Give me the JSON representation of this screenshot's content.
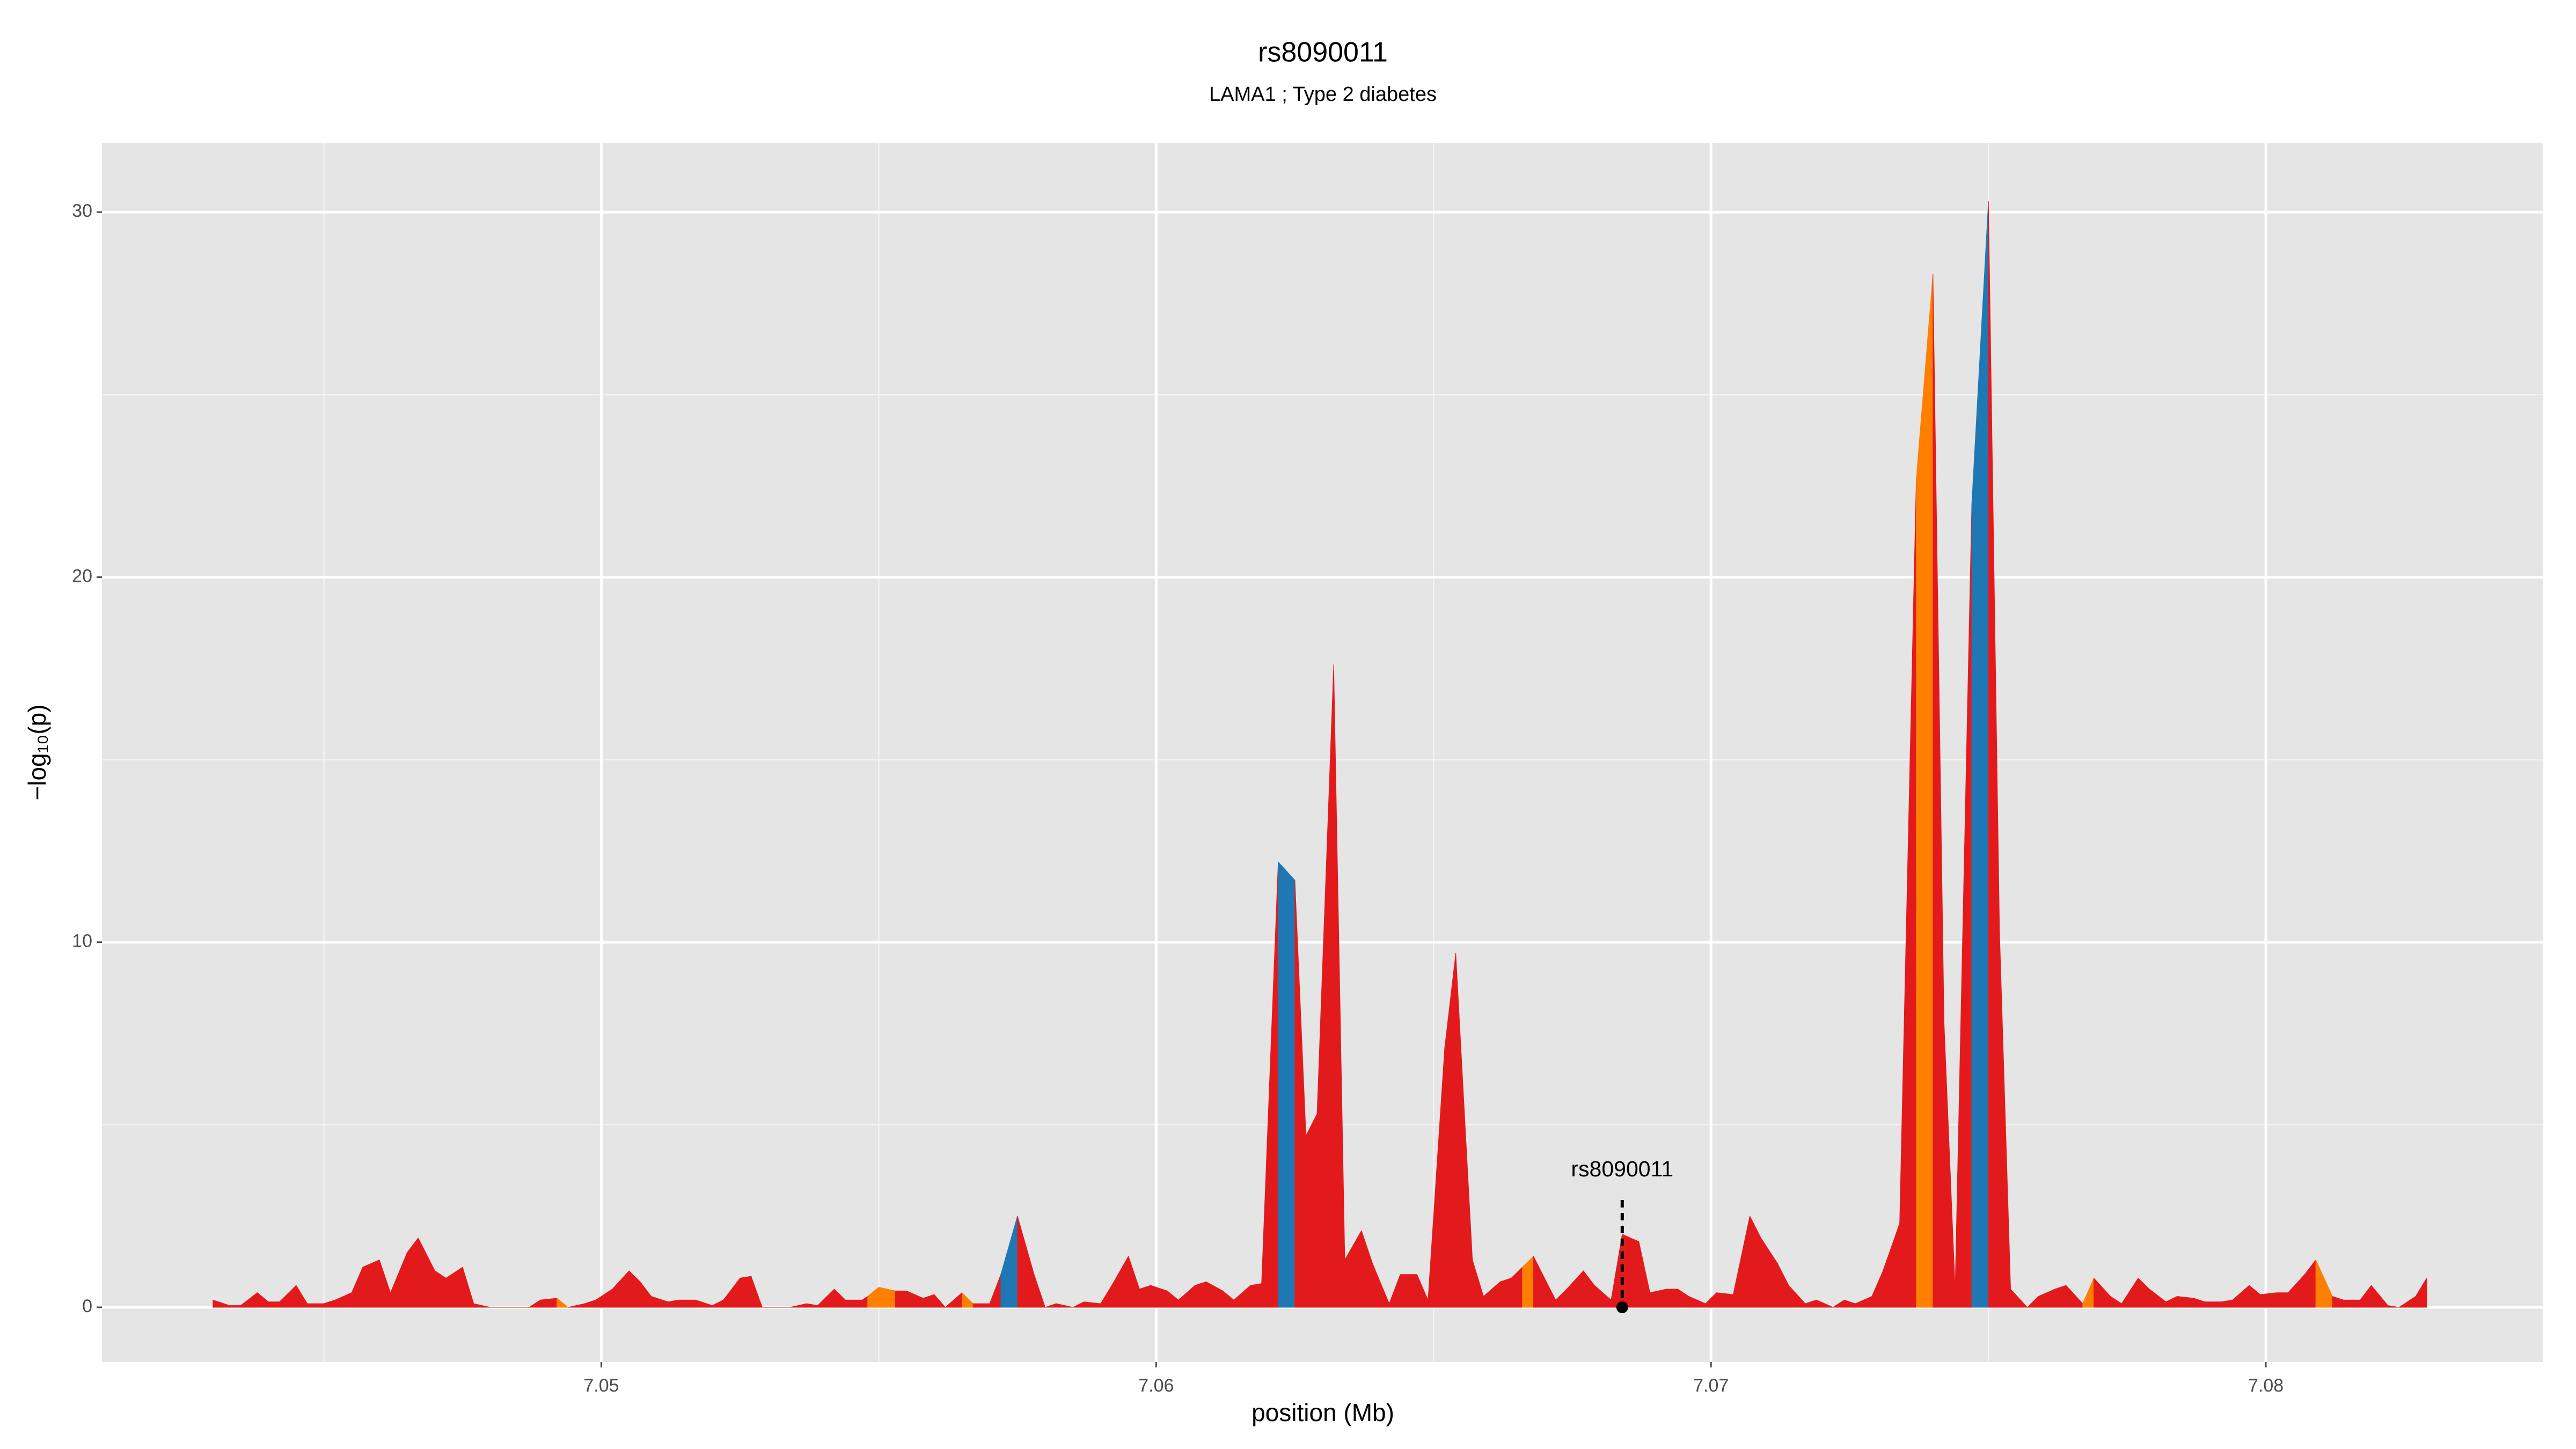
{
  "chart_data": {
    "type": "area",
    "title": "rs8090011",
    "subtitle": "LAMA1 ; Type 2 diabetes",
    "xlabel": "position (Mb)",
    "ylabel": "−log₁₀(p)",
    "xlim": [
      7.041,
      7.085
    ],
    "ylim": [
      -1.5,
      31.9
    ],
    "xticks": [
      7.05,
      7.06,
      7.07,
      7.08
    ],
    "yticks": [
      0,
      10,
      20,
      30
    ],
    "x_minor_ticks": [
      7.045,
      7.055,
      7.065,
      7.075
    ],
    "y_minor_ticks": [
      5,
      15,
      25
    ],
    "grid": true,
    "panel_color": "#e5e5e5",
    "x": [
      7.043,
      7.0433,
      7.0435,
      7.0438,
      7.044,
      7.0442,
      7.0445,
      7.0447,
      7.045,
      7.0452,
      7.0455,
      7.0457,
      7.046,
      7.0462,
      7.0465,
      7.0467,
      7.047,
      7.0472,
      7.0475,
      7.0477,
      7.048,
      7.0482,
      7.0485,
      7.0487,
      7.0489,
      7.0492,
      7.0494,
      7.0497,
      7.0499,
      7.0502,
      7.0505,
      7.0507,
      7.0509,
      7.0512,
      7.0514,
      7.0517,
      7.052,
      7.0522,
      7.0525,
      7.0527,
      7.0529,
      7.0532,
      7.0534,
      7.0537,
      7.0539,
      7.0542,
      7.0544,
      7.0547,
      7.0548,
      7.055,
      7.0553,
      7.0555,
      7.0558,
      7.056,
      7.0562,
      7.0565,
      7.0567,
      7.057,
      7.0572,
      7.0575,
      7.0578,
      7.058,
      7.0582,
      7.0585,
      7.0587,
      7.059,
      7.0592,
      7.0595,
      7.0597,
      7.0599,
      7.0602,
      7.0604,
      7.0607,
      7.0609,
      7.0612,
      7.0614,
      7.0617,
      7.0619,
      7.0622,
      7.0625,
      7.0627,
      7.0629,
      7.0632,
      7.0634,
      7.0637,
      7.0639,
      7.0642,
      7.0644,
      7.0647,
      7.0649,
      7.0652,
      7.0654,
      7.0657,
      7.0659,
      7.0662,
      7.0664,
      7.0666,
      7.0668,
      7.0669,
      7.0672,
      7.0674,
      7.0677,
      7.0679,
      7.0682,
      7.0684,
      7.0687,
      7.0689,
      7.0692,
      7.0694,
      7.0696,
      7.0699,
      7.0701,
      7.0704,
      7.0707,
      7.0709,
      7.0712,
      7.0714,
      7.0717,
      7.0719,
      7.0722,
      7.0724,
      7.0726,
      7.0729,
      7.0731,
      7.0734,
      7.0737,
      7.074,
      7.0742,
      7.0744,
      7.0747,
      7.075,
      7.0752,
      7.0754,
      7.0757,
      7.0759,
      7.0762,
      7.0764,
      7.0767,
      7.0769,
      7.0772,
      7.0774,
      7.0777,
      7.0779,
      7.0782,
      7.0784,
      7.0787,
      7.0789,
      7.0792,
      7.0794,
      7.0797,
      7.0799,
      7.0802,
      7.0804,
      7.0807,
      7.0809,
      7.0812,
      7.0814,
      7.0817,
      7.0819,
      7.0822,
      7.0824,
      7.0827,
      7.0829
    ],
    "values": [
      0.2,
      0.05,
      0.05,
      0.4,
      0.15,
      0.15,
      0.6,
      0.1,
      0.1,
      0.2,
      0.4,
      1.1,
      1.3,
      0.4,
      1.5,
      1.9,
      1.0,
      0.8,
      1.1,
      0.1,
      0.0,
      0.0,
      0.0,
      0.0,
      0.2,
      0.25,
      0.0,
      0.1,
      0.2,
      0.5,
      1.0,
      0.7,
      0.3,
      0.15,
      0.2,
      0.2,
      0.05,
      0.2,
      0.8,
      0.85,
      0.0,
      0.0,
      0.0,
      0.1,
      0.05,
      0.5,
      0.2,
      0.2,
      0.3,
      0.55,
      0.45,
      0.45,
      0.25,
      0.35,
      0.0,
      0.4,
      0.1,
      0.1,
      0.9,
      2.5,
      0.9,
      0.0,
      0.1,
      0.0,
      0.15,
      0.1,
      0.6,
      1.4,
      0.5,
      0.6,
      0.45,
      0.2,
      0.6,
      0.7,
      0.45,
      0.2,
      0.6,
      0.65,
      12.2,
      11.7,
      4.7,
      5.3,
      17.6,
      1.3,
      2.1,
      1.2,
      0.1,
      0.9,
      0.9,
      0.2,
      7.1,
      9.7,
      1.3,
      0.3,
      0.7,
      0.8,
      1.1,
      1.4,
      1.1,
      0.2,
      0.5,
      1.0,
      0.6,
      0.2,
      2.0,
      1.8,
      0.4,
      0.5,
      0.5,
      0.3,
      0.1,
      0.4,
      0.35,
      2.5,
      1.9,
      1.2,
      0.6,
      0.1,
      0.2,
      0.0,
      0.2,
      0.1,
      0.3,
      1.0,
      2.3,
      22.7,
      28.3,
      7.8,
      0.5,
      22.0,
      30.3,
      10.3,
      0.5,
      0.0,
      0.3,
      0.5,
      0.6,
      0.1,
      0.8,
      0.3,
      0.1,
      0.8,
      0.5,
      0.15,
      0.3,
      0.25,
      0.15,
      0.15,
      0.2,
      0.6,
      0.35,
      0.4,
      0.4,
      0.9,
      1.3,
      0.3,
      0.2,
      0.2,
      0.6,
      0.05,
      0.0,
      0.3,
      0.8
    ],
    "colors": [
      "#e31a1c",
      "#e31a1c",
      "#e31a1c",
      "#e31a1c",
      "#e31a1c",
      "#e31a1c",
      "#e31a1c",
      "#e31a1c",
      "#e31a1c",
      "#e31a1c",
      "#e31a1c",
      "#e31a1c",
      "#e31a1c",
      "#e31a1c",
      "#e31a1c",
      "#e31a1c",
      "#e31a1c",
      "#e31a1c",
      "#e31a1c",
      "#e31a1c",
      "#e31a1c",
      "#e31a1c",
      "#e31a1c",
      "#e31a1c",
      "#e31a1c",
      "#ff7f00",
      "#e31a1c",
      "#e31a1c",
      "#e31a1c",
      "#e31a1c",
      "#e31a1c",
      "#e31a1c",
      "#e31a1c",
      "#e31a1c",
      "#e31a1c",
      "#e31a1c",
      "#e31a1c",
      "#e31a1c",
      "#e31a1c",
      "#e31a1c",
      "#e31a1c",
      "#e31a1c",
      "#e31a1c",
      "#e31a1c",
      "#e31a1c",
      "#e31a1c",
      "#e31a1c",
      "#e31a1c",
      "#ff7f00",
      "#ff7f00",
      "#e31a1c",
      "#e31a1c",
      "#e31a1c",
      "#e31a1c",
      "#e31a1c",
      "#ff7f00",
      "#e31a1c",
      "#e31a1c",
      "#1f78b4",
      "#e31a1c",
      "#e31a1c",
      "#e31a1c",
      "#e31a1c",
      "#e31a1c",
      "#e31a1c",
      "#e31a1c",
      "#e31a1c",
      "#e31a1c",
      "#e31a1c",
      "#e31a1c",
      "#e31a1c",
      "#e31a1c",
      "#e31a1c",
      "#e31a1c",
      "#e31a1c",
      "#e31a1c",
      "#e31a1c",
      "#e31a1c",
      "#1f78b4",
      "#e31a1c",
      "#e31a1c",
      "#e31a1c",
      "#e31a1c",
      "#e31a1c",
      "#e31a1c",
      "#e31a1c",
      "#e31a1c",
      "#e31a1c",
      "#e31a1c",
      "#e31a1c",
      "#e31a1c",
      "#e31a1c",
      "#e31a1c",
      "#e31a1c",
      "#e31a1c",
      "#e31a1c",
      "#ff7f00",
      "#e31a1c",
      "#e31a1c",
      "#e31a1c",
      "#e31a1c",
      "#e31a1c",
      "#e31a1c",
      "#e31a1c",
      "#e31a1c",
      "#e31a1c",
      "#e31a1c",
      "#e31a1c",
      "#e31a1c",
      "#e31a1c",
      "#e31a1c",
      "#e31a1c",
      "#e31a1c",
      "#e31a1c",
      "#e31a1c",
      "#e31a1c",
      "#e31a1c",
      "#e31a1c",
      "#e31a1c",
      "#e31a1c",
      "#e31a1c",
      "#e31a1c",
      "#e31a1c",
      "#e31a1c",
      "#e31a1c",
      "#ff7f00",
      "#e31a1c",
      "#e31a1c",
      "#e31a1c",
      "#1f78b4",
      "#e31a1c",
      "#e31a1c",
      "#e31a1c",
      "#e31a1c",
      "#e31a1c",
      "#e31a1c",
      "#e31a1c",
      "#ff7f00",
      "#e31a1c",
      "#e31a1c",
      "#e31a1c",
      "#e31a1c",
      "#e31a1c",
      "#e31a1c",
      "#e31a1c",
      "#e31a1c",
      "#e31a1c",
      "#e31a1c",
      "#e31a1c",
      "#e31a1c",
      "#e31a1c",
      "#e31a1c",
      "#e31a1c",
      "#e31a1c",
      "#ff7f00",
      "#e31a1c",
      "#e31a1c",
      "#e31a1c",
      "#e31a1c",
      "#e31a1c",
      "#e31a1c",
      "#e31a1c",
      "#e31a1c",
      "#e31a1c"
    ],
    "annotation": {
      "text": "rs8090011",
      "x": 7.0684
    }
  }
}
